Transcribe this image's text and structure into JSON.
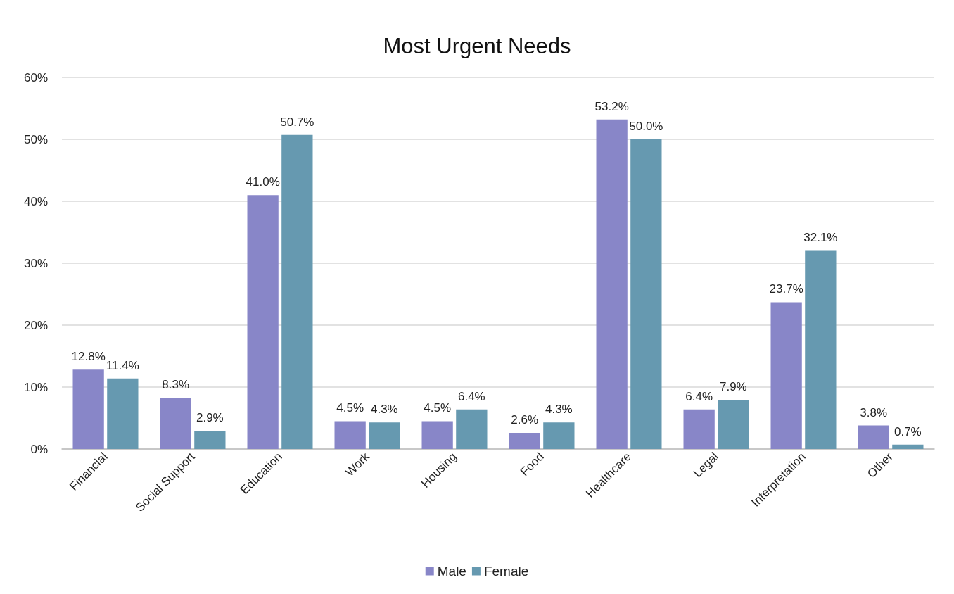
{
  "chart_data": {
    "type": "bar",
    "title": "Most Urgent Needs",
    "categories": [
      "Financial",
      "Social Support",
      "Education",
      "Work",
      "Housing",
      "Food",
      "Healthcare",
      "Legal",
      "Interpretation",
      "Other"
    ],
    "series": [
      {
        "name": "Male",
        "color": "#8886c8",
        "values": [
          12.8,
          8.3,
          41.0,
          4.5,
          4.5,
          2.6,
          53.2,
          6.4,
          23.7,
          3.8
        ],
        "value_labels": [
          "12.8%",
          "8.3%",
          "41.0%",
          "4.5%",
          "4.5%",
          "2.6%",
          "53.2%",
          "6.4%",
          "23.7%",
          "3.8%"
        ]
      },
      {
        "name": "Female",
        "color": "#6699b0",
        "values": [
          11.4,
          2.9,
          50.7,
          4.3,
          6.4,
          4.3,
          50.0,
          7.9,
          32.1,
          0.7
        ],
        "value_labels": [
          "11.4%",
          "2.9%",
          "50.7%",
          "4.3%",
          "6.4%",
          "4.3%",
          "50.0%",
          "7.9%",
          "32.1%",
          "0.7%"
        ]
      }
    ],
    "ylim": [
      0,
      60
    ],
    "yticks": [
      {
        "value": 0,
        "label": "0%"
      },
      {
        "value": 10,
        "label": "10%"
      },
      {
        "value": 20,
        "label": "20%"
      },
      {
        "value": 30,
        "label": "30%"
      },
      {
        "value": 40,
        "label": "40%"
      },
      {
        "value": 50,
        "label": "50%"
      },
      {
        "value": 60,
        "label": "60%"
      }
    ],
    "grid": "y",
    "legend": "bottom"
  }
}
